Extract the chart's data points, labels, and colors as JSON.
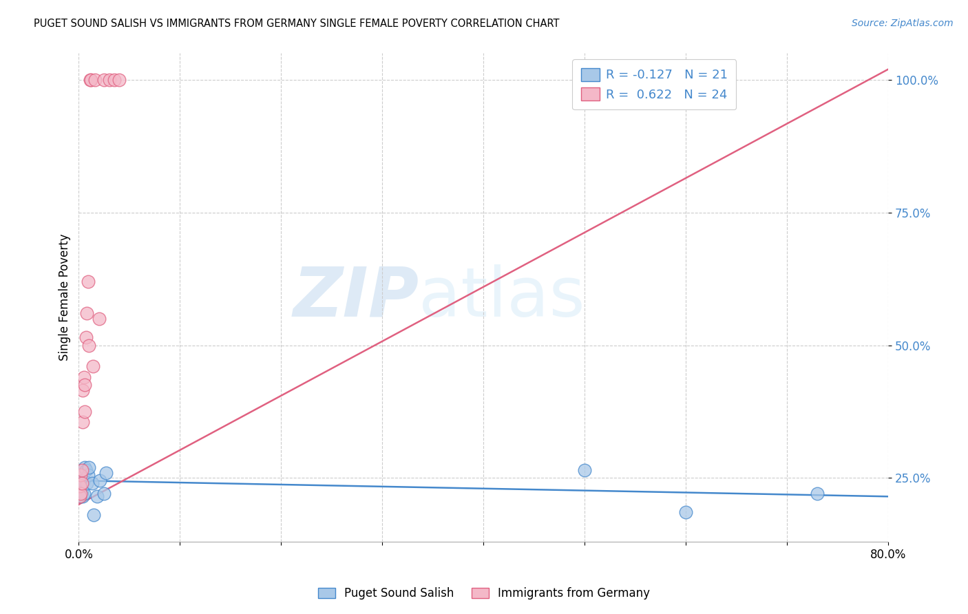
{
  "title": "PUGET SOUND SALISH VS IMMIGRANTS FROM GERMANY SINGLE FEMALE POVERTY CORRELATION CHART",
  "source": "Source: ZipAtlas.com",
  "ylabel": "Single Female Poverty",
  "legend_label1": "Puget Sound Salish",
  "legend_label2": "Immigrants from Germany",
  "r1": -0.127,
  "n1": 21,
  "r2": 0.622,
  "n2": 24,
  "color_blue": "#a8c8e8",
  "color_pink": "#f4b8c8",
  "color_blue_line": "#4488cc",
  "color_pink_line": "#e06080",
  "watermark_zip": "ZIP",
  "watermark_atlas": "atlas",
  "xlim": [
    0.0,
    0.8
  ],
  "ylim": [
    0.13,
    1.05
  ],
  "yticks": [
    0.25,
    0.5,
    0.75,
    1.0
  ],
  "ytick_labels": [
    "25.0%",
    "50.0%",
    "75.0%",
    "100.0%"
  ],
  "xticks": [
    0.0,
    0.1,
    0.2,
    0.3,
    0.4,
    0.5,
    0.6,
    0.7,
    0.8
  ],
  "xtick_labels_show": {
    "0.0": "0.0%",
    "0.8": "80.0%"
  },
  "blue_x": [
    0.001,
    0.002,
    0.003,
    0.003,
    0.004,
    0.005,
    0.005,
    0.006,
    0.007,
    0.008,
    0.009,
    0.01,
    0.013,
    0.015,
    0.018,
    0.021,
    0.025,
    0.027,
    0.5,
    0.6,
    0.73
  ],
  "blue_y": [
    0.235,
    0.215,
    0.225,
    0.245,
    0.215,
    0.22,
    0.245,
    0.27,
    0.265,
    0.24,
    0.255,
    0.27,
    0.24,
    0.18,
    0.215,
    0.245,
    0.22,
    0.26,
    0.265,
    0.185,
    0.22
  ],
  "pink_x": [
    0.001,
    0.001,
    0.002,
    0.002,
    0.003,
    0.003,
    0.004,
    0.004,
    0.005,
    0.006,
    0.006,
    0.007,
    0.008,
    0.009,
    0.01,
    0.011,
    0.012,
    0.014,
    0.016,
    0.02,
    0.025,
    0.03,
    0.035,
    0.04
  ],
  "pink_y": [
    0.215,
    0.235,
    0.22,
    0.255,
    0.24,
    0.265,
    0.355,
    0.415,
    0.44,
    0.425,
    0.375,
    0.515,
    0.56,
    0.62,
    0.5,
    1.0,
    1.0,
    0.46,
    1.0,
    0.55,
    1.0,
    1.0,
    1.0,
    1.0
  ],
  "pink_line_x": [
    0.0,
    0.8
  ],
  "pink_line_y": [
    0.2,
    1.02
  ],
  "blue_line_x": [
    0.0,
    0.8
  ],
  "blue_line_y": [
    0.245,
    0.215
  ]
}
